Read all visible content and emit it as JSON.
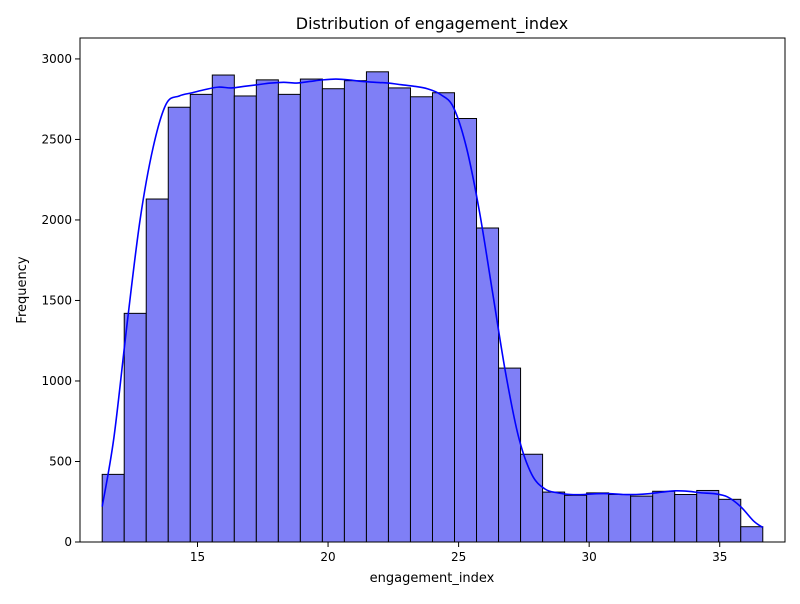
{
  "chart_data": {
    "type": "bar",
    "title": "Distribution of engagement_index",
    "xlabel": "engagement_index",
    "ylabel": "Frequency",
    "xlim": [
      10.5,
      37.5
    ],
    "ylim": [
      0,
      3130
    ],
    "bin_start": 11.35,
    "bin_width": 0.8433,
    "values": [
      420,
      1420,
      2130,
      2700,
      2780,
      2900,
      2770,
      2870,
      2780,
      2875,
      2815,
      2865,
      2920,
      2820,
      2765,
      2790,
      2630,
      1950,
      1080,
      545,
      310,
      290,
      305,
      295,
      285,
      315,
      295,
      320,
      265,
      95
    ],
    "xticks": [
      15,
      20,
      25,
      30,
      35
    ],
    "yticks": [
      0,
      500,
      1000,
      1500,
      2000,
      2500,
      3000
    ],
    "xtick_labels": [
      "15",
      "20",
      "25",
      "30",
      "35"
    ],
    "ytick_labels": [
      "0",
      "500",
      "1000",
      "1500",
      "2000",
      "2500",
      "3000"
    ],
    "kde": {
      "x": [
        11.35,
        11.8,
        12.3,
        12.8,
        13.3,
        13.8,
        14.3,
        14.8,
        15.3,
        15.8,
        16.3,
        16.8,
        17.3,
        17.8,
        18.3,
        18.8,
        19.3,
        19.8,
        20.3,
        20.8,
        21.3,
        21.8,
        22.3,
        22.8,
        23.3,
        23.8,
        24.3,
        24.8,
        25.3,
        25.8,
        26.3,
        26.8,
        27.3,
        27.8,
        28.3,
        28.8,
        29.3,
        29.8,
        30.3,
        30.8,
        31.3,
        31.8,
        32.3,
        32.8,
        33.3,
        33.8,
        34.3,
        34.8,
        35.3,
        35.8,
        36.3,
        36.65
      ],
      "y": [
        220,
        650,
        1350,
        2000,
        2450,
        2720,
        2770,
        2790,
        2810,
        2825,
        2820,
        2830,
        2840,
        2850,
        2855,
        2850,
        2860,
        2870,
        2875,
        2870,
        2860,
        2855,
        2850,
        2840,
        2830,
        2815,
        2780,
        2700,
        2450,
        2050,
        1550,
        1050,
        650,
        420,
        330,
        305,
        295,
        295,
        300,
        300,
        295,
        295,
        300,
        310,
        318,
        315,
        305,
        300,
        280,
        220,
        130,
        90
      ],
      "color": "#0000ff"
    },
    "bar_color": "#7f7ff6",
    "edge_color": "#000000"
  }
}
